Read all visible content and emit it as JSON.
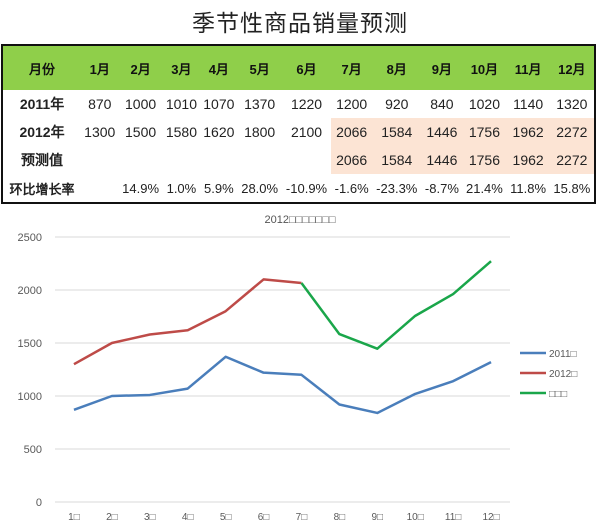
{
  "title": "季节性商品销量预测",
  "table": {
    "headers": [
      "月份",
      "1月",
      "2月",
      "3月",
      "4月",
      "5月",
      "6月",
      "7月",
      "8月",
      "9月",
      "10月",
      "11月",
      "12月"
    ],
    "rows": [
      {
        "label": "2011年",
        "values": [
          "870",
          "1000",
          "1010",
          "1070",
          "1370",
          "1220",
          "1200",
          "920",
          "840",
          "1020",
          "1140",
          "1320"
        ]
      },
      {
        "label": "2012年",
        "values": [
          "1300",
          "1500",
          "1580",
          "1620",
          "1800",
          "2100",
          "2066",
          "1584",
          "1446",
          "1756",
          "1962",
          "2272"
        ]
      },
      {
        "label": "预测值",
        "values": [
          "",
          "",
          "",
          "",
          "",
          "",
          "2066",
          "1584",
          "1446",
          "1756",
          "1962",
          "2272"
        ]
      },
      {
        "label": "环比增长率",
        "values": [
          "",
          "14.9%",
          "1.0%",
          "5.9%",
          "28.0%",
          "-10.9%",
          "-1.6%",
          "-23.3%",
          "-8.7%",
          "21.4%",
          "11.8%",
          "15.8%"
        ]
      }
    ],
    "header_color": "#8fcf4a",
    "highlight_color": "#fce4d4"
  },
  "chart_data": {
    "type": "line",
    "title": "2012□□□□□□□",
    "categories": [
      "1□",
      "2□",
      "3□",
      "4□",
      "5□",
      "6□",
      "7□",
      "8□",
      "9□",
      "10□",
      "11□",
      "12□"
    ],
    "series": [
      {
        "name": "2011□",
        "color": "#4a7ebb",
        "values": [
          870,
          1000,
          1010,
          1070,
          1370,
          1220,
          1200,
          920,
          840,
          1020,
          1140,
          1320
        ]
      },
      {
        "name": "2012□",
        "color": "#be4b48",
        "values": [
          1300,
          1500,
          1580,
          1620,
          1800,
          2100,
          2066,
          null,
          null,
          null,
          null,
          null
        ]
      },
      {
        "name": "□□□",
        "color": "#1aa64a",
        "values": [
          null,
          null,
          null,
          null,
          null,
          null,
          2066,
          1584,
          1446,
          1756,
          1962,
          2272
        ]
      }
    ],
    "yticks": [
      0,
      500,
      1000,
      1500,
      2000,
      2500
    ],
    "ylim": [
      0,
      2500
    ],
    "xlabel": "",
    "ylabel": "",
    "grid": true,
    "legend_position": "right"
  }
}
